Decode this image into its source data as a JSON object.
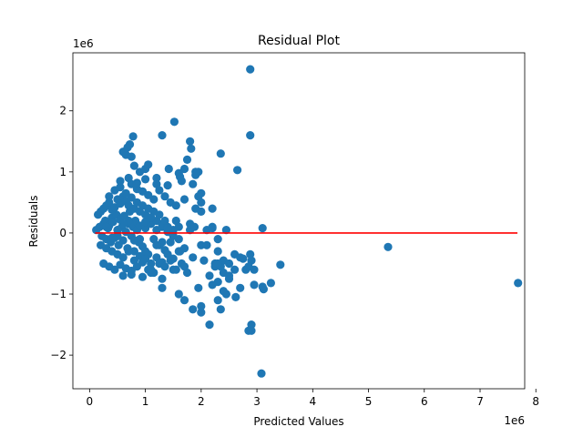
{
  "chart_data": {
    "type": "scatter",
    "title": "Residual Plot",
    "xlabel": "Predicted Values",
    "ylabel": "Residuals",
    "x_offset_label": "1e6",
    "y_offset_label": "1e6",
    "xlim": [
      -0.3,
      7.8
    ],
    "ylim": [
      -2.55,
      2.95
    ],
    "xticks": [
      0,
      1,
      2,
      3,
      4,
      5,
      6,
      7,
      8
    ],
    "xtick_labels": [
      "0",
      "1",
      "2",
      "3",
      "4",
      "5",
      "6",
      "7",
      "8"
    ],
    "yticks": [
      -2,
      -1,
      0,
      1,
      2
    ],
    "ytick_labels": [
      "−2",
      "−1",
      "0",
      "1",
      "2"
    ],
    "grid": false,
    "point_color": "#1f77b4",
    "line_color": "#ff0000",
    "reference_line": {
      "x": [
        0.1,
        7.67
      ],
      "y": [
        0.0,
        0.0
      ]
    },
    "series": [
      {
        "x": [
          0.12,
          0.18,
          0.22,
          0.25,
          0.28,
          0.3,
          0.33,
          0.35,
          0.38,
          0.4,
          0.42,
          0.45,
          0.48,
          0.5,
          0.52,
          0.55,
          0.58,
          0.6,
          0.62,
          0.65,
          0.68,
          0.7,
          0.72,
          0.75,
          0.78,
          0.8,
          0.82,
          0.85,
          0.88,
          0.9,
          0.95,
          1.0,
          1.05,
          1.1,
          1.15,
          1.2,
          1.25,
          1.3,
          1.35,
          1.4,
          1.45,
          1.5,
          0.15,
          0.2,
          0.25,
          0.3,
          0.35,
          0.4,
          0.45,
          0.5,
          0.55,
          0.6,
          0.65,
          0.7,
          0.75,
          0.8,
          0.85,
          0.9,
          0.95,
          1.0,
          1.05,
          1.1,
          1.15,
          1.2,
          1.25,
          1.3,
          1.35,
          1.4,
          0.2,
          0.3,
          0.4,
          0.5,
          0.6,
          0.7,
          0.8,
          0.9,
          1.0,
          1.1,
          1.2,
          1.3,
          1.4,
          1.5,
          1.6,
          1.7,
          0.35,
          0.45,
          0.55,
          0.65,
          0.75,
          0.85,
          0.95,
          1.05,
          1.15,
          1.25,
          1.35,
          1.45,
          1.55,
          0.25,
          0.35,
          0.45,
          0.55,
          0.65,
          0.75,
          0.85,
          0.95,
          1.05,
          1.15,
          1.25,
          1.35,
          1.45,
          1.55,
          1.65,
          0.3,
          0.5,
          0.7,
          0.9,
          1.1,
          1.3,
          1.5,
          0.4,
          0.6,
          0.8,
          1.0,
          1.2,
          1.4,
          1.6,
          1.8,
          0.55,
          0.7,
          0.85,
          1.0,
          1.2,
          1.4,
          0.6,
          0.75,
          0.95,
          1.1,
          1.3,
          1.5,
          1.7,
          1.55,
          1.62,
          1.8,
          1.85,
          1.88,
          2.0,
          2.05,
          2.1,
          2.2,
          2.25,
          2.3,
          2.35,
          2.4,
          2.5,
          2.6,
          2.7,
          2.8,
          2.9,
          1.7,
          1.75,
          1.9,
          1.95,
          2.0,
          2.15,
          2.25,
          2.3,
          2.4,
          2.5,
          2.6,
          1.65,
          1.7,
          1.85,
          1.9,
          2.0,
          1.95,
          2.2,
          2.45,
          2.2,
          2.3,
          2.1,
          1.6,
          0.65,
          0.6,
          0.75,
          0.78,
          0.68,
          0.72,
          0.8,
          0.9,
          1.0,
          1.05,
          1.2,
          1.3,
          1.42,
          1.52,
          1.6,
          1.62,
          1.75,
          1.8,
          1.82,
          1.9,
          2.0,
          2.35,
          2.65,
          2.88,
          2.88,
          0.6,
          1.0,
          1.1,
          1.3,
          1.6,
          1.7,
          1.85,
          2.0,
          2.3,
          2.9,
          2.85,
          3.1,
          3.12,
          3.25,
          3.42,
          3.1,
          2.95,
          2.95,
          2.85,
          2.88,
          2.75,
          2.7,
          5.35,
          7.68,
          3.08,
          2.9,
          2.62,
          2.35,
          1.95,
          2.0,
          2.15,
          2.3,
          2.5,
          2.45,
          2.4,
          2.2
        ],
        "y": [
          0.05,
          0.1,
          -0.05,
          0.15,
          0.2,
          -0.1,
          0.08,
          0.12,
          -0.15,
          0.25,
          0.18,
          -0.08,
          0.3,
          0.05,
          -0.2,
          0.22,
          0.1,
          -0.12,
          0.28,
          0.02,
          -0.25,
          0.15,
          0.35,
          -0.05,
          0.1,
          -0.3,
          0.2,
          0.05,
          -0.15,
          0.12,
          -0.22,
          0.08,
          -0.35,
          0.15,
          -0.1,
          0.05,
          -0.2,
          0.1,
          -0.28,
          0.02,
          -0.15,
          -0.05,
          0.3,
          0.35,
          0.4,
          0.45,
          0.5,
          0.38,
          0.42,
          0.55,
          0.48,
          0.6,
          0.52,
          0.45,
          0.58,
          0.4,
          0.5,
          0.35,
          0.45,
          0.3,
          0.4,
          0.25,
          0.35,
          0.2,
          0.3,
          0.15,
          0.2,
          0.1,
          -0.2,
          -0.25,
          -0.3,
          -0.35,
          -0.4,
          -0.3,
          -0.45,
          -0.38,
          -0.42,
          -0.5,
          -0.4,
          -0.48,
          -0.35,
          -0.42,
          -0.3,
          -0.25,
          0.6,
          0.7,
          0.75,
          0.65,
          0.8,
          0.72,
          0.68,
          0.62,
          0.55,
          0.7,
          0.6,
          0.5,
          0.45,
          -0.5,
          -0.55,
          -0.6,
          -0.52,
          -0.58,
          -0.62,
          -0.55,
          -0.48,
          -0.6,
          -0.65,
          -0.5,
          -0.55,
          -0.45,
          -0.6,
          -0.5,
          0.1,
          -0.05,
          0.2,
          -0.1,
          0.25,
          -0.15,
          0.05,
          -0.08,
          0.15,
          -0.12,
          0.18,
          -0.2,
          0.08,
          -0.1,
          0.05,
          0.85,
          0.9,
          0.82,
          0.88,
          0.8,
          0.78,
          -0.7,
          -0.68,
          -0.72,
          -0.65,
          -0.75,
          -0.6,
          -0.55,
          0.2,
          -0.3,
          0.15,
          -0.4,
          0.1,
          -0.2,
          -0.45,
          0.05,
          0.1,
          -0.5,
          -0.3,
          -0.55,
          -0.45,
          -0.5,
          -0.35,
          -0.4,
          -0.6,
          -0.45,
          0.55,
          -0.65,
          0.4,
          0.6,
          0.35,
          -0.7,
          -0.55,
          -0.8,
          -0.65,
          -0.75,
          -0.6,
          0.85,
          1.05,
          0.8,
          0.95,
          0.5,
          1.0,
          0.4,
          0.05,
          0.08,
          -0.1,
          -0.2,
          0.1,
          1.28,
          1.33,
          1.25,
          1.58,
          1.4,
          1.45,
          1.1,
          1.0,
          1.05,
          1.12,
          0.9,
          1.6,
          1.05,
          1.82,
          0.98,
          0.92,
          1.2,
          1.5,
          1.38,
          1.0,
          0.65,
          1.3,
          1.03,
          1.6,
          2.68,
          -0.4,
          -0.3,
          -0.6,
          -0.9,
          -1.0,
          -1.1,
          -1.25,
          -1.3,
          -1.1,
          -1.5,
          -1.6,
          0.08,
          -0.92,
          -0.82,
          -0.52,
          -0.88,
          -0.85,
          -0.6,
          -0.55,
          -0.35,
          -0.42,
          -0.9,
          -0.23,
          -0.82,
          -2.3,
          -1.6,
          -1.05,
          -1.25,
          -0.9,
          -1.2,
          -1.5,
          -0.5,
          -0.7,
          -1.0,
          -0.95,
          -0.85
        ]
      }
    ]
  }
}
